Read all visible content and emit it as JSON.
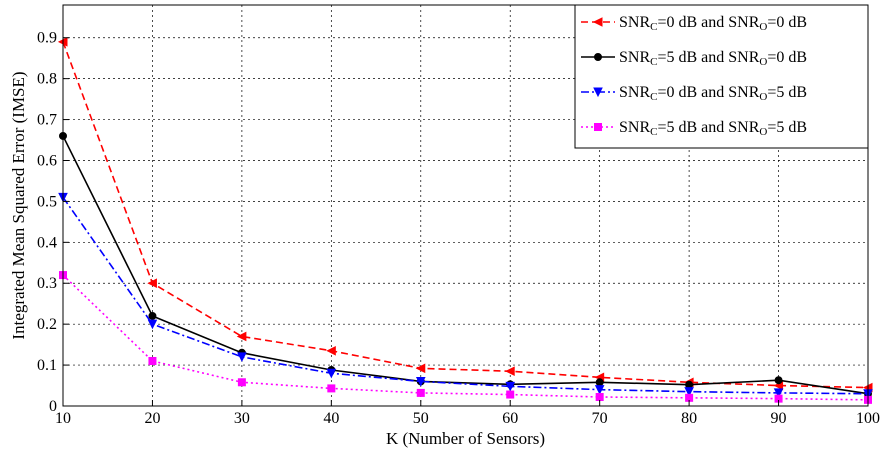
{
  "chart_data": {
    "type": "line",
    "title": "",
    "xlabel": "K (Number of Sensors)",
    "ylabel": "Integrated Mean Squared Error (IMSE)",
    "x": [
      10,
      20,
      30,
      40,
      50,
      60,
      70,
      80,
      90,
      100
    ],
    "x_ticks": [
      "10",
      "20",
      "30",
      "40",
      "50",
      "60",
      "70",
      "80",
      "90",
      "100"
    ],
    "y_ticks": [
      "0",
      "0.1",
      "0.2",
      "0.3",
      "0.4",
      "0.5",
      "0.6",
      "0.7",
      "0.8",
      "0.9"
    ],
    "xlim": [
      10,
      100
    ],
    "ylim": [
      0,
      0.98
    ],
    "grid": true,
    "legend_position": "top-right",
    "series": [
      {
        "name": "SNRC=0 dB and SNRO=0 dB",
        "legend": {
          "a": "SNR",
          "b": "C",
          "c": "=0 dB and SNR",
          "d": "O",
          "e": "=0 dB"
        },
        "color": "#ff0000",
        "line_style": "dashed",
        "marker": "triangle-left",
        "values": [
          0.89,
          0.3,
          0.17,
          0.135,
          0.092,
          0.085,
          0.07,
          0.058,
          0.05,
          0.045
        ]
      },
      {
        "name": "SNRC=5 dB and SNRO=0 dB",
        "legend": {
          "a": "SNR",
          "b": "C",
          "c": "=5 dB and SNR",
          "d": "O",
          "e": "=0 dB"
        },
        "color": "#000000",
        "line_style": "solid",
        "marker": "circle",
        "values": [
          0.66,
          0.22,
          0.13,
          0.088,
          0.06,
          0.053,
          0.058,
          0.052,
          0.063,
          0.03
        ]
      },
      {
        "name": "SNRC=0 dB and SNRO=5 dB",
        "legend": {
          "a": "SNR",
          "b": "C",
          "c": "=0 dB and SNR",
          "d": "O",
          "e": "=5 dB"
        },
        "color": "#0000ff",
        "line_style": "dashdot",
        "marker": "triangle-down",
        "values": [
          0.51,
          0.2,
          0.12,
          0.08,
          0.06,
          0.048,
          0.04,
          0.035,
          0.032,
          0.03
        ]
      },
      {
        "name": "SNRC=5 dB and SNRO=5 dB",
        "legend": {
          "a": "SNR",
          "b": "C",
          "c": "=5 dB and SNR",
          "d": "O",
          "e": "=5 dB"
        },
        "color": "#ff00ff",
        "line_style": "dotted",
        "marker": "square",
        "values": [
          0.32,
          0.11,
          0.058,
          0.043,
          0.032,
          0.028,
          0.022,
          0.02,
          0.018,
          0.015
        ]
      }
    ]
  }
}
